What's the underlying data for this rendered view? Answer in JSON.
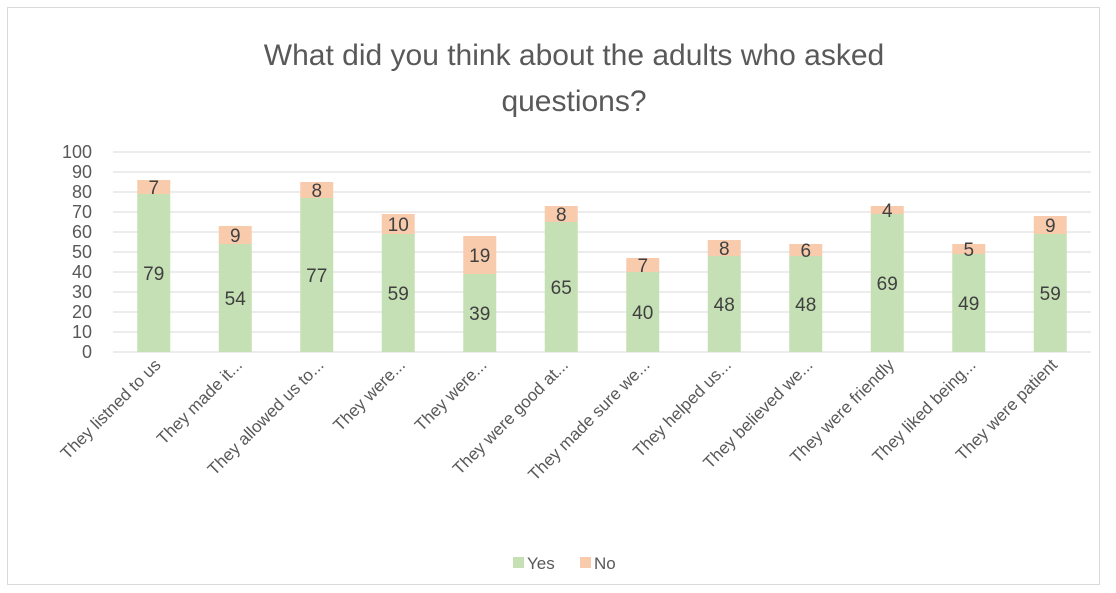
{
  "chart_data": {
    "type": "bar",
    "stacked": true,
    "title": "What did you think about the adults who asked questions?",
    "title_lines": [
      "What did you think about the adults who asked",
      "questions?"
    ],
    "xlabel": "",
    "ylabel": "",
    "ylim": [
      0,
      100
    ],
    "yticks": [
      0,
      10,
      20,
      30,
      40,
      50,
      60,
      70,
      80,
      90,
      100
    ],
    "grid": true,
    "legend_position": "bottom",
    "categories": [
      "They listned to us",
      "They made it...",
      "They allowed us to...",
      "They were...",
      "They were...",
      "They were good at...",
      "They made sure we...",
      "They helped us...",
      "They believed we...",
      "They were friendly",
      "They liked being...",
      "They were patient"
    ],
    "series": [
      {
        "name": "Yes",
        "color": "#c5e0b4",
        "values": [
          79,
          54,
          77,
          59,
          39,
          65,
          40,
          48,
          48,
          69,
          49,
          59
        ]
      },
      {
        "name": "No",
        "color": "#f8cbad",
        "values": [
          7,
          9,
          8,
          10,
          19,
          8,
          7,
          8,
          6,
          4,
          5,
          9
        ]
      }
    ]
  }
}
